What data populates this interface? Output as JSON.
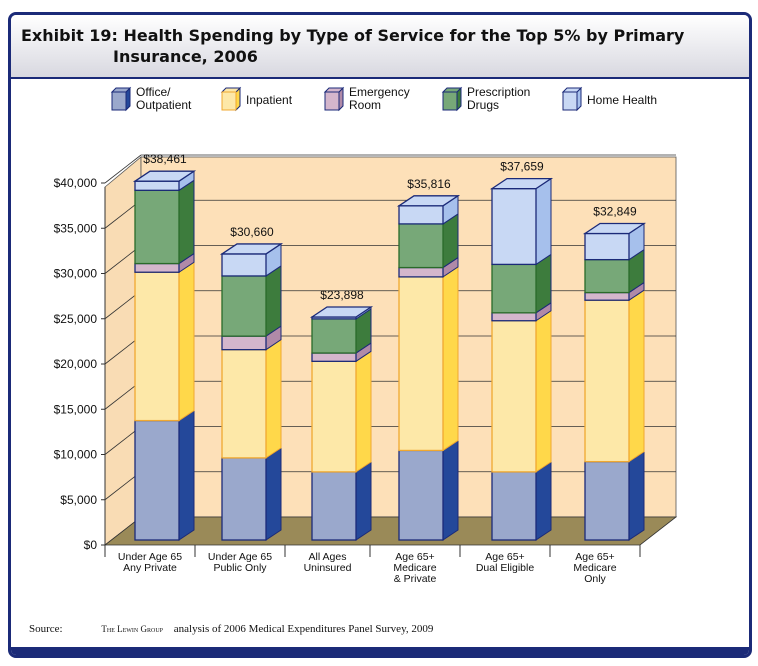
{
  "title": {
    "line1": "Exhibit 19: Health Spending by Type of Service for the Top 5% by Primary",
    "line2": "Insurance, 2006"
  },
  "source": {
    "label": "Source:",
    "logo": "The Lewin Group",
    "text": "analysis of 2006 Medical Expenditures Panel Survey, 2009"
  },
  "chart_data": {
    "type": "bar",
    "stacked": true,
    "three_d": true,
    "categories": [
      "Under Age 65 Any Private",
      "Under Age 65 Public Only",
      "All Ages Uninsured",
      "Age 65+ Medicare & Private",
      "Age 65+ Dual Eligible",
      "Age 65+ Medicare Only"
    ],
    "category_lines": [
      [
        "Under Age 65",
        "Any Private"
      ],
      [
        "Under Age 65",
        "Public Only"
      ],
      [
        "All Ages",
        "Uninsured"
      ],
      [
        "Age 65+",
        "Medicare",
        "& Private"
      ],
      [
        "Age 65+",
        "Dual Eligible"
      ],
      [
        "Age 65+",
        "Medicare",
        "Only"
      ]
    ],
    "totals": [
      "$38,461",
      "$30,660",
      "$23,898",
      "$35,816",
      "$37,659",
      "$32,849"
    ],
    "total_values": [
      38461,
      30660,
      23898,
      35816,
      37659,
      32849
    ],
    "series": [
      {
        "name": "Office/ Outpatient",
        "lines": [
          "Office/",
          "Outpatient"
        ],
        "color": "#9aa8cc",
        "side": "#24489a",
        "values": [
          12800,
          8800,
          7300,
          9600,
          7300,
          8400
        ]
      },
      {
        "name": "Inpatient",
        "lines": [
          "Inpatient"
        ],
        "color": "#fde8a8",
        "side": "#ffd84a",
        "values": [
          15900,
          11600,
          11850,
          18600,
          16200,
          17300
        ]
      },
      {
        "name": "Emergency Room",
        "lines": [
          "Emergency",
          "Room"
        ],
        "color": "#d4b6cc",
        "side": "#b08aa8",
        "values": [
          930,
          1450,
          890,
          1000,
          850,
          820
        ]
      },
      {
        "name": "Prescription Drugs",
        "lines": [
          "Prescription",
          "Drugs"
        ],
        "color": "#77a878",
        "side": "#3d7c3d",
        "values": [
          7850,
          6450,
          3660,
          4680,
          5190,
          3530
        ]
      },
      {
        "name": "Home Health",
        "lines": [
          "Home Health"
        ],
        "color": "#c8d8f4",
        "side": "#a6c0ec",
        "values": [
          980,
          2360,
          200,
          1940,
          8120,
          2800
        ]
      }
    ],
    "yticks": [
      "$0",
      "$5,000",
      "$10,000",
      "$15,000",
      "$20,000",
      "$25,000",
      "$30,000",
      "$35,000",
      "$40,000"
    ],
    "ylim": [
      0,
      40000
    ],
    "grid": true,
    "legend": "top"
  }
}
